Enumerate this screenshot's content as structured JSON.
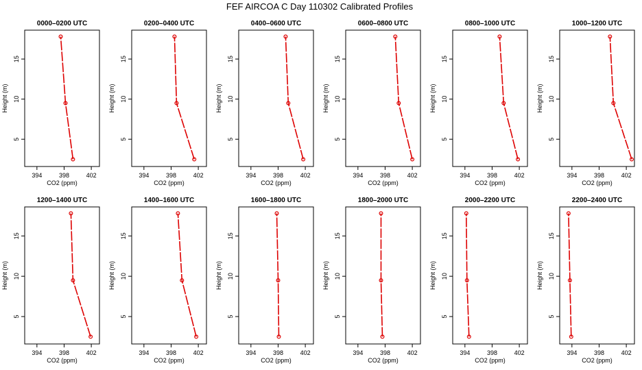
{
  "main_title": "FEF AIRCOA C  Day 110302  Calibrated Profiles",
  "colors": {
    "profile": "#dd0000",
    "axis": "#000000",
    "background": "#ffffff"
  },
  "chart_data": [
    {
      "type": "line",
      "title": "0000–0200 UTC",
      "xlabel": "CO2 (ppm)",
      "ylabel": "Height (m)",
      "xlim": [
        392.2,
        403.2
      ],
      "ylim": [
        1.6,
        18.6
      ],
      "xticks": [
        394,
        398,
        402
      ],
      "yticks": [
        5,
        10,
        15
      ],
      "grid": false,
      "series": [
        {
          "x": [
            399.3,
            398.2,
            397.5
          ],
          "y": [
            2.5,
            9.5,
            17.8
          ]
        }
      ]
    },
    {
      "type": "line",
      "title": "0200–0400 UTC",
      "xlabel": "CO2 (ppm)",
      "ylabel": "Height (m)",
      "xlim": [
        392.2,
        403.2
      ],
      "ylim": [
        1.6,
        18.6
      ],
      "xticks": [
        394,
        398,
        402
      ],
      "yticks": [
        5,
        10,
        15
      ],
      "grid": false,
      "series": [
        {
          "x": [
            401.4,
            398.8,
            398.5
          ],
          "y": [
            2.5,
            9.5,
            17.8
          ]
        }
      ]
    },
    {
      "type": "line",
      "title": "0400–0600 UTC",
      "xlabel": "CO2 (ppm)",
      "ylabel": "Height (m)",
      "xlim": [
        392.2,
        403.2
      ],
      "ylim": [
        1.6,
        18.6
      ],
      "xticks": [
        394,
        398,
        402
      ],
      "yticks": [
        5,
        10,
        15
      ],
      "grid": false,
      "series": [
        {
          "x": [
            401.7,
            399.5,
            399.1
          ],
          "y": [
            2.5,
            9.5,
            17.8
          ]
        }
      ]
    },
    {
      "type": "line",
      "title": "0600–0800 UTC",
      "xlabel": "CO2 (ppm)",
      "ylabel": "Height (m)",
      "xlim": [
        392.2,
        403.2
      ],
      "ylim": [
        1.6,
        18.6
      ],
      "xticks": [
        394,
        398,
        402
      ],
      "yticks": [
        5,
        10,
        15
      ],
      "grid": false,
      "series": [
        {
          "x": [
            402.0,
            400.0,
            399.5
          ],
          "y": [
            2.5,
            9.5,
            17.8
          ]
        }
      ]
    },
    {
      "type": "line",
      "title": "0800–1000 UTC",
      "xlabel": "CO2 (ppm)",
      "ylabel": "Height (m)",
      "xlim": [
        392.2,
        403.2
      ],
      "ylim": [
        1.6,
        18.6
      ],
      "xticks": [
        394,
        398,
        402
      ],
      "yticks": [
        5,
        10,
        15
      ],
      "grid": false,
      "series": [
        {
          "x": [
            401.8,
            399.7,
            399.1
          ],
          "y": [
            2.5,
            9.5,
            17.8
          ]
        }
      ]
    },
    {
      "type": "line",
      "title": "1000–1200 UTC",
      "xlabel": "CO2 (ppm)",
      "ylabel": "Height (m)",
      "xlim": [
        392.2,
        403.2
      ],
      "ylim": [
        1.6,
        18.6
      ],
      "xticks": [
        394,
        398,
        402
      ],
      "yticks": [
        5,
        10,
        15
      ],
      "grid": false,
      "series": [
        {
          "x": [
            402.8,
            400.1,
            399.6
          ],
          "y": [
            2.5,
            9.5,
            17.8
          ]
        }
      ]
    },
    {
      "type": "line",
      "title": "1200–1400 UTC",
      "xlabel": "CO2 (ppm)",
      "ylabel": "Height (m)",
      "xlim": [
        392.2,
        403.2
      ],
      "ylim": [
        1.6,
        18.6
      ],
      "xticks": [
        394,
        398,
        402
      ],
      "yticks": [
        5,
        10,
        15
      ],
      "grid": false,
      "series": [
        {
          "x": [
            401.9,
            399.3,
            399.0
          ],
          "y": [
            2.5,
            9.5,
            17.8
          ]
        }
      ]
    },
    {
      "type": "line",
      "title": "1400–1600 UTC",
      "xlabel": "CO2 (ppm)",
      "ylabel": "Height (m)",
      "xlim": [
        392.2,
        403.2
      ],
      "ylim": [
        1.6,
        18.6
      ],
      "xticks": [
        394,
        398,
        402
      ],
      "yticks": [
        5,
        10,
        15
      ],
      "grid": false,
      "series": [
        {
          "x": [
            401.7,
            399.6,
            399.0
          ],
          "y": [
            2.5,
            9.5,
            17.8
          ]
        }
      ]
    },
    {
      "type": "line",
      "title": "1600–1800 UTC",
      "xlabel": "CO2 (ppm)",
      "ylabel": "Height (m)",
      "xlim": [
        392.2,
        403.2
      ],
      "ylim": [
        1.6,
        18.6
      ],
      "xticks": [
        394,
        398,
        402
      ],
      "yticks": [
        5,
        10,
        15
      ],
      "grid": false,
      "series": [
        {
          "x": [
            398.1,
            398.0,
            397.8
          ],
          "y": [
            2.5,
            9.5,
            17.8
          ]
        }
      ]
    },
    {
      "type": "line",
      "title": "1800–2000 UTC",
      "xlabel": "CO2 (ppm)",
      "ylabel": "Height (m)",
      "xlim": [
        392.2,
        403.2
      ],
      "ylim": [
        1.6,
        18.6
      ],
      "xticks": [
        394,
        398,
        402
      ],
      "yticks": [
        5,
        10,
        15
      ],
      "grid": false,
      "series": [
        {
          "x": [
            397.6,
            397.4,
            397.4
          ],
          "y": [
            2.5,
            9.5,
            17.8
          ]
        }
      ]
    },
    {
      "type": "line",
      "title": "2000–2200 UTC",
      "xlabel": "CO2 (ppm)",
      "ylabel": "Height (m)",
      "xlim": [
        392.2,
        403.2
      ],
      "ylim": [
        1.6,
        18.6
      ],
      "xticks": [
        394,
        398,
        402
      ],
      "yticks": [
        5,
        10,
        15
      ],
      "grid": false,
      "series": [
        {
          "x": [
            394.6,
            394.3,
            394.2
          ],
          "y": [
            2.5,
            9.5,
            17.8
          ]
        }
      ]
    },
    {
      "type": "line",
      "title": "2200–2400 UTC",
      "xlabel": "CO2 (ppm)",
      "ylabel": "Height (m)",
      "xlim": [
        392.2,
        403.2
      ],
      "ylim": [
        1.6,
        18.6
      ],
      "xticks": [
        394,
        398,
        402
      ],
      "yticks": [
        5,
        10,
        15
      ],
      "grid": false,
      "series": [
        {
          "x": [
            393.9,
            393.7,
            393.5
          ],
          "y": [
            2.5,
            9.5,
            17.8
          ]
        }
      ]
    }
  ]
}
